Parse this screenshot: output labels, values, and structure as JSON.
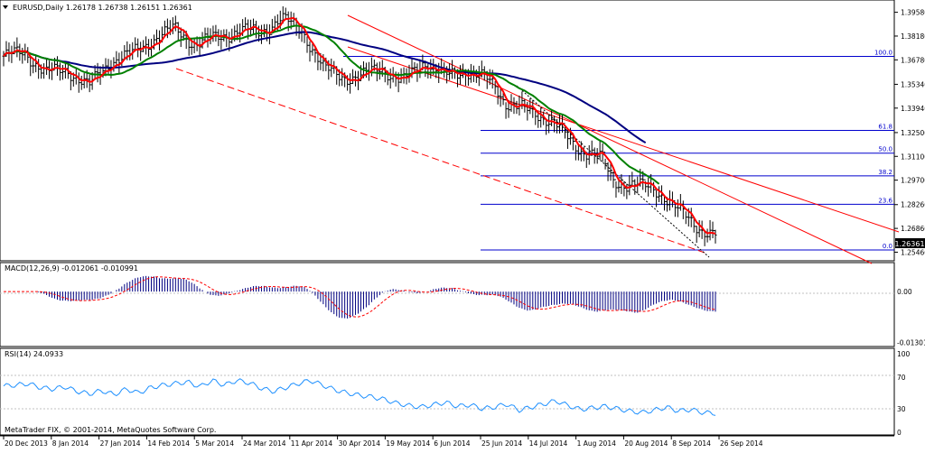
{
  "window": {
    "symbol_header": "EURUSD,Daily  1.26178 1.26738 1.26151 1.26361",
    "copyright": "MetaTrader FIX, © 2001-2014, MetaQuotes Software Corp."
  },
  "colors": {
    "price_bars": "#000000",
    "ma_fast": "#ff0000",
    "ma_mid": "#008000",
    "ma_slow": "#000080",
    "fib_lines": "#0000cd",
    "channel": "#ff0000",
    "macd_hist": "#000080",
    "macd_signal": "#ff0000",
    "rsi": "#1e90ff",
    "last_price_bg": "#000000"
  },
  "chart_data": [
    {
      "type": "line",
      "panel": "price",
      "x_tick_labels": [
        "20 Dec 2013",
        "8 Jan 2014",
        "27 Jan 2014",
        "14 Feb 2014",
        "5 Mar 2014",
        "24 Mar 2014",
        "11 Apr 2014",
        "30 Apr 2014",
        "19 May 2014",
        "6 Jun 2014",
        "25 Jun 2014",
        "14 Jul 2014",
        "1 Aug 2014",
        "20 Aug 2014",
        "8 Sep 2014",
        "26 Sep 2014"
      ],
      "y_tick_labels": [
        "1.39580",
        "1.38180",
        "1.36780",
        "1.35340",
        "1.33940",
        "1.32500",
        "1.31100",
        "1.29700",
        "1.28260",
        "1.26860",
        "1.25460"
      ],
      "y_ticks": [
        1.3958,
        1.3818,
        1.3678,
        1.3534,
        1.3394,
        1.325,
        1.311,
        1.297,
        1.2826,
        1.2686,
        1.2546
      ],
      "ylim": [
        1.2506,
        1.4009
      ],
      "last_price": {
        "label": "1.26361",
        "value": 1.26361
      },
      "series": [
        {
          "kind": "ohlc",
          "x": [
            0,
            12,
            24,
            36,
            48,
            60,
            72,
            84,
            96,
            108,
            120,
            132,
            144,
            156,
            168,
            180,
            192,
            200,
            212,
            224,
            236,
            248,
            260,
            264,
            270
          ],
          "close": [
            1.37,
            1.372,
            1.36,
            1.362,
            1.352,
            1.367,
            1.371,
            1.38,
            1.386,
            1.377,
            1.381,
            1.385,
            1.384,
            1.392,
            1.385,
            1.362,
            1.358,
            1.357,
            1.364,
            1.354,
            1.367,
            1.358,
            1.362,
            1.359,
            1.357
          ]
        },
        {
          "kind": "ohlc",
          "x": [
            276,
            282,
            288,
            294,
            300,
            306,
            312,
            318,
            324,
            330,
            336,
            342,
            348,
            354,
            360,
            366,
            372,
            378,
            384,
            390,
            396,
            402
          ],
          "close": [
            1.353,
            1.343,
            1.34,
            1.338,
            1.336,
            1.333,
            1.328,
            1.32,
            1.315,
            1.313,
            1.31,
            1.297,
            1.295,
            1.294,
            1.293,
            1.292,
            1.287,
            1.28,
            1.275,
            1.27,
            1.266,
            1.264
          ]
        }
      ],
      "horizontal_levels": [
        {
          "label": "100.0",
          "value": 1.3698
        },
        {
          "label": "61.8",
          "value": 1.3263
        },
        {
          "label": "50.0",
          "value": 1.3129
        },
        {
          "label": "38.2",
          "value": 1.2995
        },
        {
          "label": "23.6",
          "value": 1.2828
        },
        {
          "label": "0.0",
          "value": 1.2559
        }
      ]
    },
    {
      "type": "bar",
      "panel": "macd",
      "header": "MACD(12,26,9) -0.012061 -0.010991",
      "y_tick_labels": [
        "0.00",
        "-0.013018"
      ],
      "values_note": "histogram descending from about 0.0040 to -0.0130",
      "ylim": [
        -0.0136,
        0.0065
      ]
    },
    {
      "type": "line",
      "panel": "rsi",
      "header": "RSI(14) 24.0933",
      "y_tick_labels": [
        "100",
        "70",
        "30",
        "0"
      ],
      "levels": [
        70,
        30
      ],
      "ylim": [
        0,
        100
      ],
      "values": [
        59,
        60,
        62,
        57,
        55,
        58,
        52,
        49,
        53,
        48,
        55,
        50,
        57,
        60,
        62,
        64,
        58,
        66,
        60,
        66,
        63,
        56,
        52,
        57,
        62,
        66,
        60,
        54,
        50,
        47,
        45,
        42,
        37,
        34,
        32,
        35,
        38,
        33,
        35,
        30,
        32,
        36,
        28,
        32,
        36,
        40,
        34,
        29,
        31,
        33,
        30,
        27,
        25,
        28,
        32,
        27,
        29,
        25,
        24
      ]
    }
  ]
}
